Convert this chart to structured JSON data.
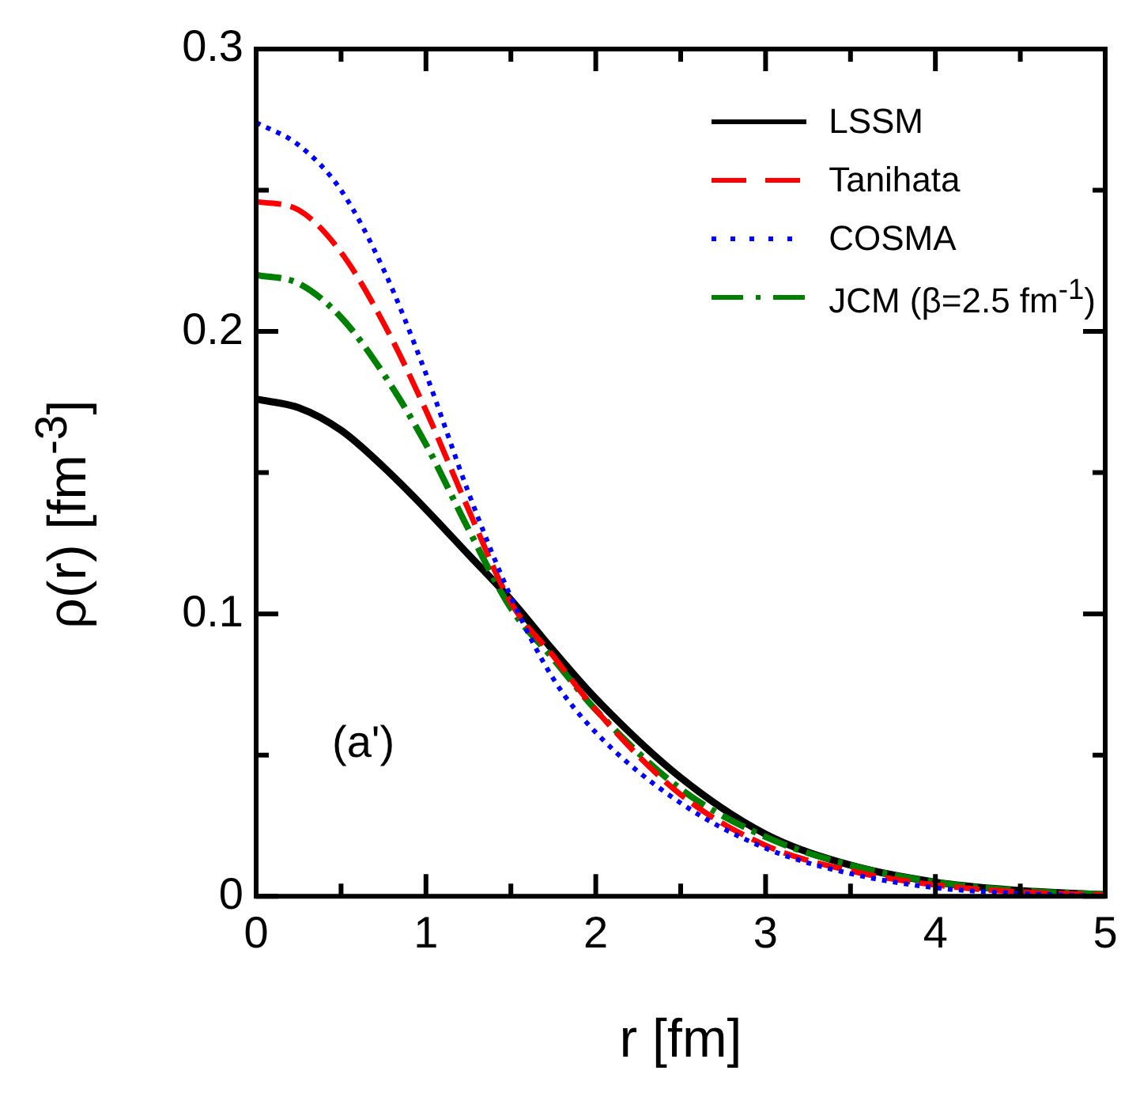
{
  "chart_data": {
    "type": "line",
    "xlabel": "r [fm]",
    "ylabel": "ρ(r) [fm$^{-3}$]",
    "annotations": [
      "(a')"
    ],
    "x": [
      0,
      0.25,
      0.5,
      0.75,
      1,
      1.25,
      1.5,
      1.75,
      2,
      2.5,
      3,
      3.5,
      4,
      4.5,
      5
    ],
    "series": [
      {
        "name": "LSSM",
        "color": "#000000",
        "line_style": "solid",
        "values": [
          0.176,
          0.173,
          0.165,
          0.152,
          0.137,
          0.121,
          0.105,
          0.087,
          0.07,
          0.042,
          0.022,
          0.011,
          0.005,
          0.002,
          0.0005
        ]
      },
      {
        "name": "Tanihata",
        "color": "#ff0000",
        "line_style": "dashed",
        "values": [
          0.246,
          0.243,
          0.228,
          0.203,
          0.172,
          0.137,
          0.104,
          0.085,
          0.066,
          0.036,
          0.018,
          0.009,
          0.004,
          0.0015,
          0.0005
        ]
      },
      {
        "name": "COSMA",
        "color": "#0000ff",
        "line_style": "dotted",
        "values": [
          0.274,
          0.266,
          0.25,
          0.222,
          0.185,
          0.143,
          0.106,
          0.077,
          0.058,
          0.033,
          0.017,
          0.008,
          0.003,
          0.001,
          0
        ]
      },
      {
        "name": "JCM (β=2.5 fm$^{-1}$)",
        "color": "#008000",
        "line_style": "dashdot",
        "values": [
          0.22,
          0.217,
          0.205,
          0.185,
          0.16,
          0.13,
          0.102,
          0.084,
          0.066,
          0.038,
          0.021,
          0.011,
          0.005,
          0.002,
          0.0007
        ]
      }
    ],
    "xlim": [
      0,
      5
    ],
    "ylim": [
      0,
      0.3
    ],
    "xticks": [
      0,
      {
        "value": 0.5,
        "label": null
      },
      1,
      {
        "value": 1.5,
        "label": null
      },
      2,
      {
        "value": 2.5,
        "label": null
      },
      3,
      {
        "value": 3.5,
        "label": null
      },
      4,
      {
        "value": 4.5,
        "label": null
      },
      5
    ],
    "yticks": [
      0,
      {
        "value": 0.05,
        "label": null
      },
      0.1,
      {
        "value": 0.15,
        "label": null
      },
      0.2,
      {
        "value": 0.25,
        "label": null
      },
      0.3
    ],
    "grid": false,
    "legend": "top right",
    "marker": "none"
  }
}
